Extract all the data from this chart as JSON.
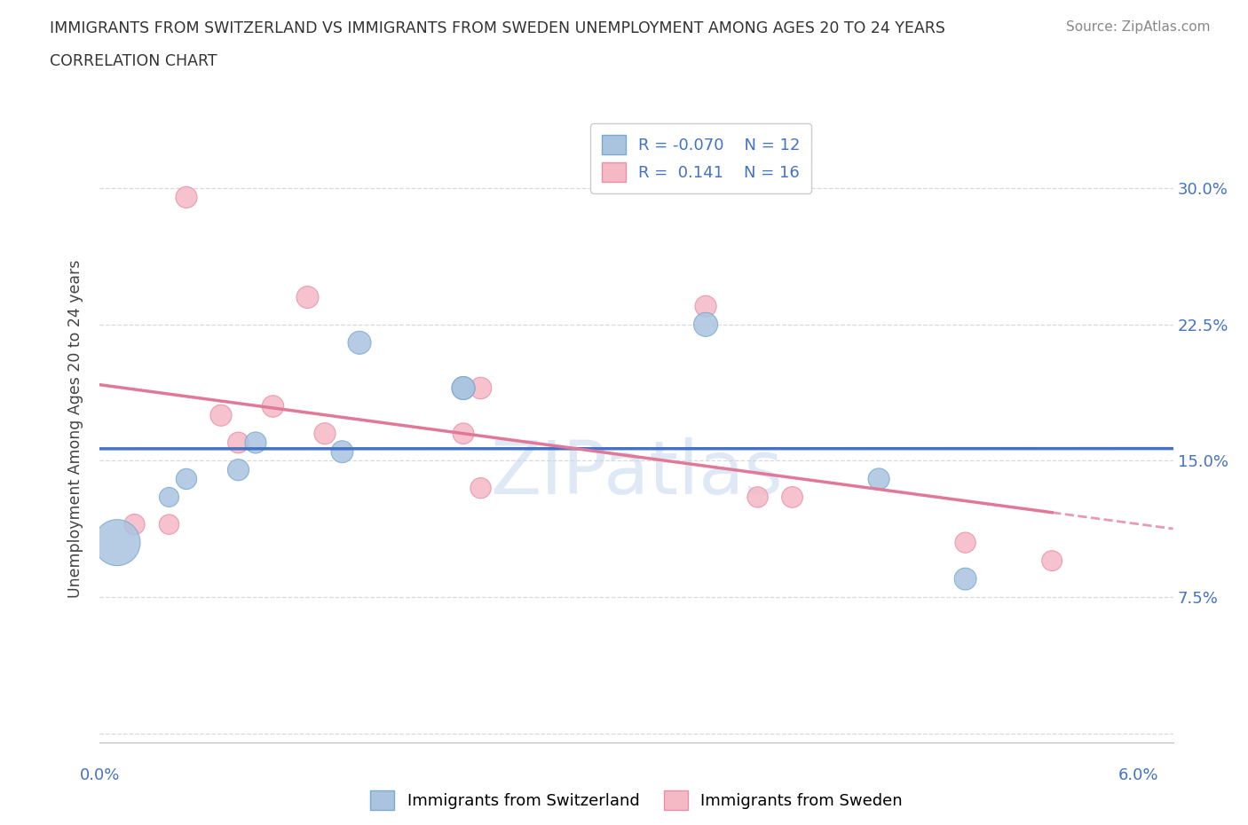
{
  "title_line1": "IMMIGRANTS FROM SWITZERLAND VS IMMIGRANTS FROM SWEDEN UNEMPLOYMENT AMONG AGES 20 TO 24 YEARS",
  "title_line2": "CORRELATION CHART",
  "source": "Source: ZipAtlas.com",
  "ylabel": "Unemployment Among Ages 20 to 24 years",
  "xlim": [
    0.0,
    0.062
  ],
  "ylim": [
    -0.005,
    0.34
  ],
  "xticks": [
    0.0,
    0.01,
    0.02,
    0.03,
    0.04,
    0.05,
    0.06
  ],
  "yticks": [
    0.0,
    0.075,
    0.15,
    0.225,
    0.3
  ],
  "ytick_labels": [
    "",
    "7.5%",
    "15.0%",
    "22.5%",
    "30.0%"
  ],
  "swiss_color": "#aac4e0",
  "swiss_edge_color": "#7aaad0",
  "sweden_color": "#f5b8c5",
  "sweden_edge_color": "#e890a8",
  "swiss_R": -0.07,
  "swiss_N": 12,
  "sweden_R": 0.141,
  "sweden_N": 16,
  "swiss_x": [
    0.001,
    0.004,
    0.005,
    0.008,
    0.009,
    0.014,
    0.015,
    0.021,
    0.021,
    0.035,
    0.045,
    0.05
  ],
  "swiss_y": [
    0.105,
    0.13,
    0.14,
    0.145,
    0.16,
    0.155,
    0.215,
    0.19,
    0.19,
    0.225,
    0.14,
    0.085
  ],
  "swiss_sizes": [
    1400,
    250,
    280,
    300,
    300,
    320,
    350,
    350,
    350,
    380,
    300,
    320
  ],
  "sweden_x": [
    0.002,
    0.004,
    0.005,
    0.007,
    0.008,
    0.01,
    0.012,
    0.013,
    0.021,
    0.022,
    0.022,
    0.035,
    0.038,
    0.04,
    0.05,
    0.055
  ],
  "sweden_y": [
    0.115,
    0.115,
    0.295,
    0.175,
    0.16,
    0.18,
    0.24,
    0.165,
    0.165,
    0.19,
    0.135,
    0.235,
    0.13,
    0.13,
    0.105,
    0.095
  ],
  "sweden_sizes": [
    280,
    260,
    300,
    300,
    290,
    310,
    320,
    300,
    290,
    310,
    280,
    300,
    280,
    290,
    280,
    270
  ],
  "swiss_line_color": "#4472c4",
  "sweden_line_color": "#e07898",
  "watermark_color": "#c5d8f0",
  "legend_label_swiss": "Immigrants from Switzerland",
  "legend_label_sweden": "Immigrants from Sweden",
  "background_color": "#ffffff",
  "grid_color": "#d0d0d0",
  "axis_color": "#4472c4",
  "title_color": "#333333",
  "source_color": "#888888"
}
